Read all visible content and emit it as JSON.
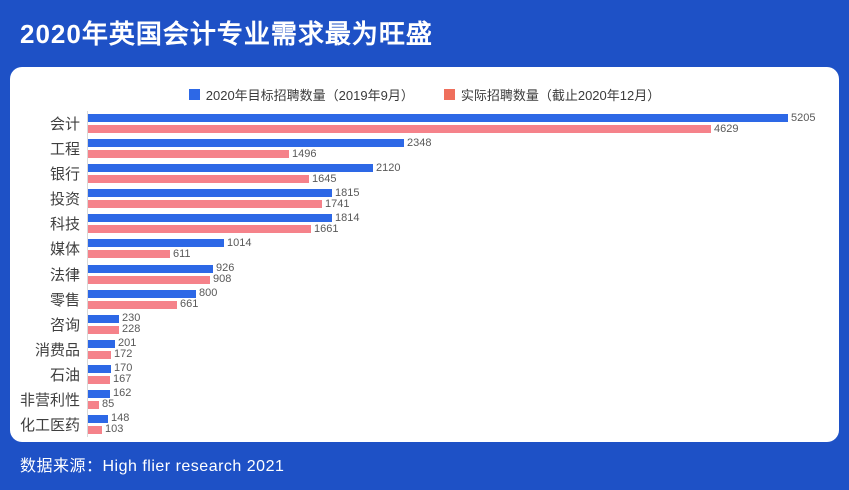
{
  "header": {
    "title": "2020年英国会计专业需求最为旺盛"
  },
  "footer": {
    "source": "数据来源：High flier research 2021"
  },
  "colors": {
    "background": "#1E51C6",
    "panel": "#FFFFFF",
    "target_bar": "#2D68E6",
    "actual_bar": "#F5828A",
    "legend_target_swatch": "#2D68E6",
    "legend_actual_swatch": "#EF6F5C",
    "axis_line": "#D9D9D9",
    "value_text": "#595959",
    "category_text": "#3F3F3F"
  },
  "legend": {
    "target_label": "2020年目标招聘数量（2019年9月）",
    "actual_label": "实际招聘数量（截止2020年12月）"
  },
  "chart_data": {
    "type": "bar",
    "orientation": "horizontal",
    "title": "2020年英国会计专业需求最为旺盛",
    "xlabel": "",
    "ylabel": "",
    "xlim": [
      0,
      5205
    ],
    "grid": false,
    "legend_position": "top",
    "value_labels": true,
    "categories": [
      "会计",
      "工程",
      "银行",
      "投资",
      "科技",
      "媒体",
      "法律",
      "零售",
      "咨询",
      "消费品",
      "石油",
      "非营利性",
      "化工医药"
    ],
    "series": [
      {
        "name": "2020年目标招聘数量（2019年9月）",
        "color": "#2D68E6",
        "values": [
          5205,
          2348,
          2120,
          1815,
          1814,
          1014,
          926,
          800,
          230,
          201,
          170,
          162,
          148
        ]
      },
      {
        "name": "实际招聘数量（截止2020年12月）",
        "color": "#F5828A",
        "values": [
          4629,
          1496,
          1645,
          1741,
          1661,
          611,
          908,
          661,
          228,
          172,
          167,
          85,
          103
        ]
      }
    ],
    "source_note": "数据来源：High flier research 2021"
  }
}
